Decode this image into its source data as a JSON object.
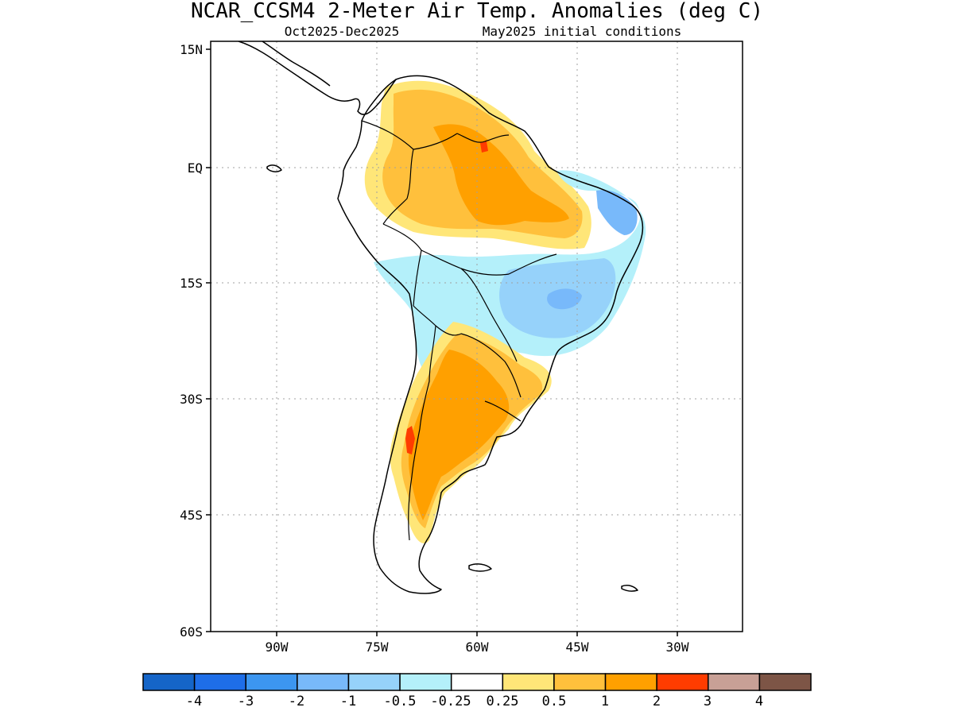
{
  "header": {
    "title": "NCAR_CCSM4 2-Meter Air Temp. Anomalies (deg C)",
    "period": "Oct2025-Dec2025",
    "init": "May2025 initial conditions"
  },
  "map": {
    "lon_range": [
      -97,
      -30
    ],
    "lat_range": [
      -60,
      15
    ],
    "lat_ticks": [
      {
        "value": 15,
        "label": "15N"
      },
      {
        "value": 0,
        "label": "EQ"
      },
      {
        "value": -15,
        "label": "15S"
      },
      {
        "value": -30,
        "label": "30S"
      },
      {
        "value": -45,
        "label": "45S"
      },
      {
        "value": -60,
        "label": "60S"
      }
    ],
    "lon_ticks": [
      {
        "value": -90,
        "label": "90W"
      },
      {
        "value": -75,
        "label": "75W"
      },
      {
        "value": -60,
        "label": "60W"
      },
      {
        "value": -45,
        "label": "45W"
      },
      {
        "value": -30,
        "label": "30W"
      }
    ],
    "grid": "dotted"
  },
  "colorbar": {
    "colors": [
      "#1565c8",
      "#1e6ee8",
      "#3c96f0",
      "#78b9fa",
      "#96d2fa",
      "#b4f0fa",
      "#ffffff",
      "#ffe678",
      "#ffc03c",
      "#ffa000",
      "#ff3c00",
      "#c8a096",
      "#7d5546"
    ],
    "labels": [
      "-4",
      "-3",
      "-2",
      "-1",
      "-0.5",
      "-0.25",
      "0.25",
      "0.5",
      "1",
      "2",
      "3",
      "4"
    ]
  }
}
